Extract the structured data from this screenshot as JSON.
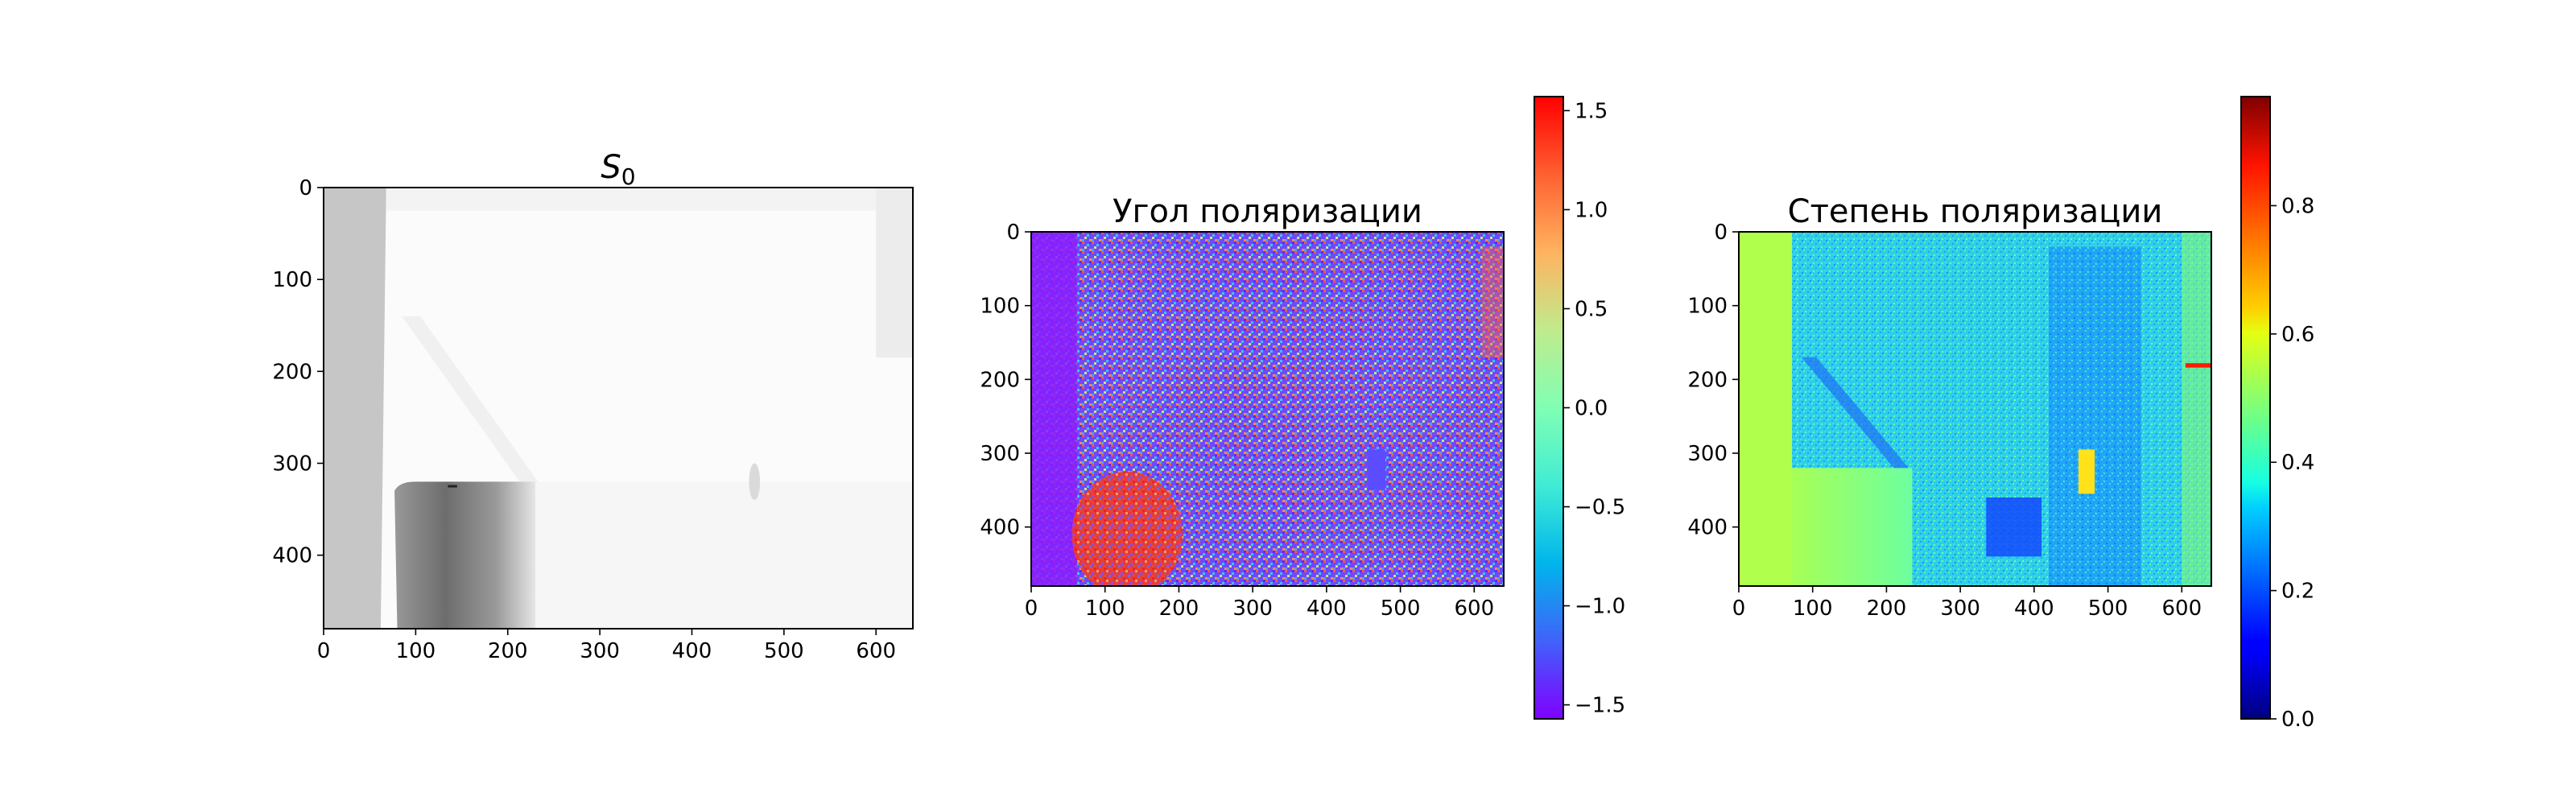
{
  "chart_data": [
    {
      "type": "heatmap",
      "title": "S₀",
      "title_main": "S",
      "title_sub": "0",
      "xlabel": "",
      "ylabel": "",
      "xlim": [
        0,
        640
      ],
      "ylim": [
        480,
        0
      ],
      "x_ticks": [
        0,
        100,
        200,
        300,
        400,
        500,
        600
      ],
      "y_ticks": [
        0,
        100,
        200,
        300,
        400
      ],
      "colormap": "gray_r",
      "colorbar": false
    },
    {
      "type": "heatmap",
      "title": "Угол поляризации",
      "xlabel": "",
      "ylabel": "",
      "xlim": [
        0,
        640
      ],
      "ylim": [
        480,
        0
      ],
      "x_ticks": [
        0,
        100,
        200,
        300,
        400,
        500,
        600
      ],
      "y_ticks": [
        0,
        100,
        200,
        300,
        400
      ],
      "colormap": "rainbow",
      "colorbar": true,
      "clim": [
        -1.5708,
        1.5708
      ],
      "colorbar_ticks": [
        1.5,
        1.0,
        0.5,
        0.0,
        -0.5,
        -1.0,
        -1.5
      ],
      "colorbar_tick_labels": [
        "1.5",
        "1.0",
        "0.5",
        "0.0",
        "−0.5",
        "−1.0",
        "−1.5"
      ]
    },
    {
      "type": "heatmap",
      "title": "Степень поляризации",
      "xlabel": "",
      "ylabel": "",
      "xlim": [
        0,
        640
      ],
      "ylim": [
        480,
        0
      ],
      "x_ticks": [
        0,
        100,
        200,
        300,
        400,
        500,
        600
      ],
      "y_ticks": [
        0,
        100,
        200,
        300,
        400
      ],
      "colormap": "jet",
      "colorbar": true,
      "clim": [
        0.0,
        0.97
      ],
      "colorbar_ticks": [
        0.8,
        0.6,
        0.4,
        0.2,
        0.0
      ],
      "colorbar_tick_labels": [
        "0.8",
        "0.6",
        "0.4",
        "0.2",
        "0.0"
      ]
    }
  ]
}
